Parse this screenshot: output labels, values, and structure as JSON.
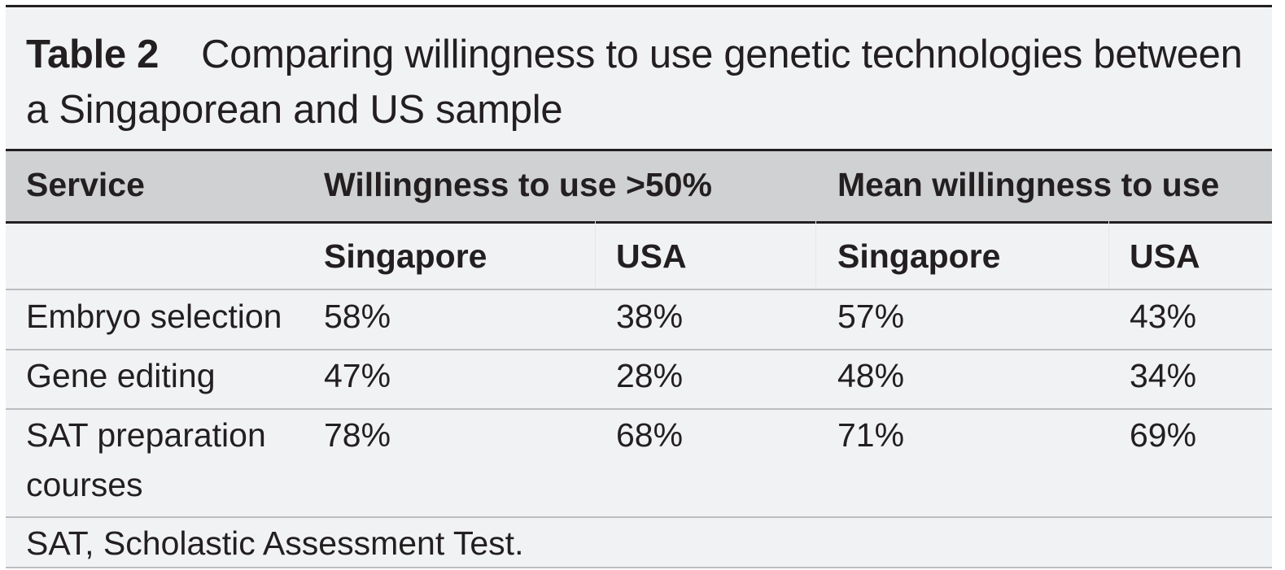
{
  "caption": {
    "label": "Table 2",
    "text": "Comparing willingness to use genetic technologies between a Singaporean and US sample"
  },
  "header": {
    "service": "Service",
    "group1": "Willingness to use >50%",
    "group2": "Mean willingness to use"
  },
  "subheader": {
    "g1_singapore": "Singapore",
    "g1_usa": "USA",
    "g2_singapore": "Singapore",
    "g2_usa": "USA"
  },
  "rows": [
    {
      "service": "Embryo selection",
      "g1_singapore": "58%",
      "g1_usa": "38%",
      "g2_singapore": "57%",
      "g2_usa": "43%"
    },
    {
      "service": "Gene editing",
      "g1_singapore": "47%",
      "g1_usa": "28%",
      "g2_singapore": "48%",
      "g2_usa": "34%"
    },
    {
      "service_line1": "SAT preparation",
      "service_line2": "courses",
      "g1_singapore": "78%",
      "g1_usa": "68%",
      "g2_singapore": "71%",
      "g2_usa": "69%"
    }
  ],
  "footnote": "SAT, Scholastic Assessment Test."
}
